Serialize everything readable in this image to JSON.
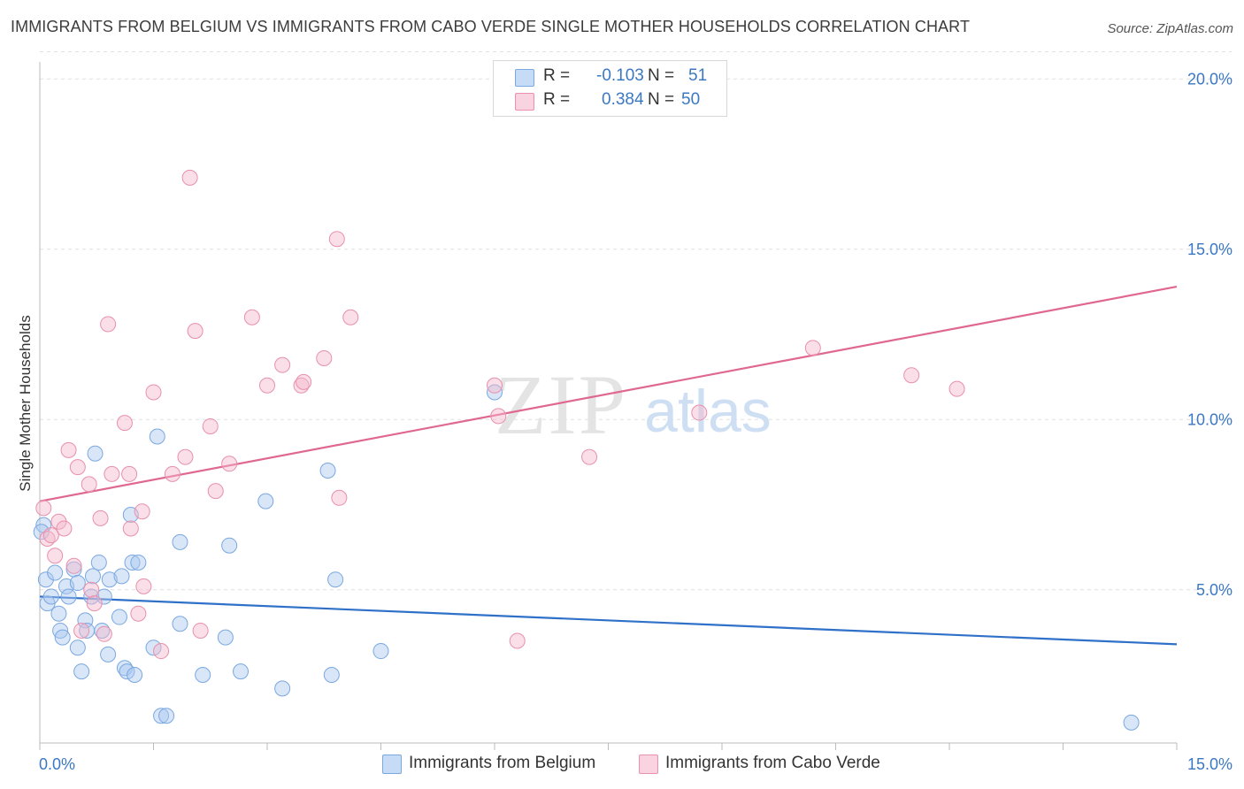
{
  "title": "IMMIGRANTS FROM BELGIUM VS IMMIGRANTS FROM CABO VERDE SINGLE MOTHER HOUSEHOLDS CORRELATION CHART",
  "source": "Source: ZipAtlas.com",
  "watermark": {
    "zip": "ZIP",
    "atlas": "atlas"
  },
  "legend": {
    "rows": [
      {
        "r_label": "R =",
        "r_value": "-0.103",
        "n_label": "N =",
        "n_value": "51",
        "color": "#a8c8f0"
      },
      {
        "r_label": "R =",
        "r_value": "0.384",
        "n_label": "N =",
        "n_value": "50",
        "color": "#f5b8cc"
      }
    ]
  },
  "bottom_legend": [
    {
      "label": "Immigrants from Belgium",
      "color": "#a8c8f0"
    },
    {
      "label": "Immigrants from Cabo Verde",
      "color": "#f5b8cc"
    }
  ],
  "chart_data": {
    "type": "scatter",
    "ylabel": "Single Mother Households",
    "xlim": [
      0,
      15
    ],
    "ylim": [
      0.5,
      20.5
    ],
    "x_tick_labels": [
      "0.0%",
      "15.0%"
    ],
    "y_ticks": [
      5,
      10,
      15,
      20
    ],
    "y_tick_labels": [
      "5.0%",
      "10.0%",
      "15.0%",
      "20.0%"
    ],
    "grid": true,
    "series": [
      {
        "name": "Immigrants from Belgium",
        "color": "#a8c8f0",
        "stroke": "#7aa8e0",
        "trend_color": "#2f70c8",
        "trend": {
          "x": [
            0,
            15
          ],
          "y": [
            4.8,
            3.4
          ]
        },
        "points": [
          [
            0.05,
            6.9
          ],
          [
            0.08,
            5.3
          ],
          [
            0.1,
            4.6
          ],
          [
            0.15,
            4.8
          ],
          [
            0.2,
            5.5
          ],
          [
            0.25,
            4.3
          ],
          [
            0.27,
            3.8
          ],
          [
            0.3,
            3.6
          ],
          [
            0.35,
            5.1
          ],
          [
            0.38,
            4.8
          ],
          [
            0.45,
            5.6
          ],
          [
            0.5,
            5.2
          ],
          [
            0.5,
            3.3
          ],
          [
            0.55,
            2.6
          ],
          [
            0.6,
            4.1
          ],
          [
            0.62,
            3.8
          ],
          [
            0.68,
            4.8
          ],
          [
            0.7,
            5.4
          ],
          [
            0.73,
            9.0
          ],
          [
            0.78,
            5.8
          ],
          [
            0.82,
            3.8
          ],
          [
            0.85,
            4.8
          ],
          [
            0.9,
            3.1
          ],
          [
            0.92,
            5.3
          ],
          [
            1.05,
            4.2
          ],
          [
            1.08,
            5.4
          ],
          [
            1.12,
            2.7
          ],
          [
            1.15,
            2.6
          ],
          [
            1.2,
            7.2
          ],
          [
            1.22,
            5.8
          ],
          [
            1.25,
            2.5
          ],
          [
            1.3,
            5.8
          ],
          [
            1.5,
            3.3
          ],
          [
            1.55,
            9.5
          ],
          [
            1.6,
            1.3
          ],
          [
            1.67,
            1.3
          ],
          [
            1.85,
            4.0
          ],
          [
            1.85,
            6.4
          ],
          [
            2.15,
            2.5
          ],
          [
            2.45,
            3.6
          ],
          [
            2.5,
            6.3
          ],
          [
            2.65,
            2.6
          ],
          [
            2.98,
            7.6
          ],
          [
            3.2,
            2.1
          ],
          [
            3.8,
            8.5
          ],
          [
            3.85,
            2.5
          ],
          [
            3.9,
            5.3
          ],
          [
            4.5,
            3.2
          ],
          [
            6.0,
            10.8
          ],
          [
            14.4,
            1.1
          ],
          [
            0.02,
            6.7
          ]
        ]
      },
      {
        "name": "Immigrants from Cabo Verde",
        "color": "#f5b8cc",
        "stroke": "#e890ac",
        "trend_color": "#e06890",
        "trend": {
          "x": [
            0,
            15
          ],
          "y": [
            7.6,
            13.9
          ]
        },
        "points": [
          [
            0.05,
            7.4
          ],
          [
            0.1,
            6.5
          ],
          [
            0.2,
            6.0
          ],
          [
            0.25,
            7.0
          ],
          [
            0.32,
            6.8
          ],
          [
            0.38,
            9.1
          ],
          [
            0.45,
            5.7
          ],
          [
            0.5,
            8.6
          ],
          [
            0.55,
            3.8
          ],
          [
            0.65,
            8.1
          ],
          [
            0.68,
            5.0
          ],
          [
            0.72,
            4.6
          ],
          [
            0.8,
            7.1
          ],
          [
            0.85,
            3.7
          ],
          [
            0.9,
            12.8
          ],
          [
            0.95,
            8.4
          ],
          [
            1.12,
            9.9
          ],
          [
            1.18,
            8.4
          ],
          [
            1.2,
            6.8
          ],
          [
            1.3,
            4.3
          ],
          [
            1.35,
            7.3
          ],
          [
            1.37,
            5.1
          ],
          [
            1.5,
            10.8
          ],
          [
            1.6,
            3.2
          ],
          [
            1.75,
            8.4
          ],
          [
            1.92,
            8.9
          ],
          [
            1.98,
            17.1
          ],
          [
            2.05,
            12.6
          ],
          [
            2.12,
            3.8
          ],
          [
            2.25,
            9.8
          ],
          [
            2.32,
            7.9
          ],
          [
            2.5,
            8.7
          ],
          [
            2.8,
            13.0
          ],
          [
            3.0,
            11.0
          ],
          [
            3.2,
            11.6
          ],
          [
            3.45,
            11.0
          ],
          [
            3.48,
            11.1
          ],
          [
            3.75,
            11.8
          ],
          [
            3.92,
            15.3
          ],
          [
            3.95,
            7.7
          ],
          [
            4.1,
            13.0
          ],
          [
            6.0,
            11.0
          ],
          [
            6.05,
            10.1
          ],
          [
            6.3,
            3.5
          ],
          [
            7.25,
            8.9
          ],
          [
            8.7,
            10.2
          ],
          [
            10.2,
            12.1
          ],
          [
            11.5,
            11.3
          ],
          [
            12.1,
            10.9
          ],
          [
            0.15,
            6.6
          ]
        ]
      }
    ]
  }
}
